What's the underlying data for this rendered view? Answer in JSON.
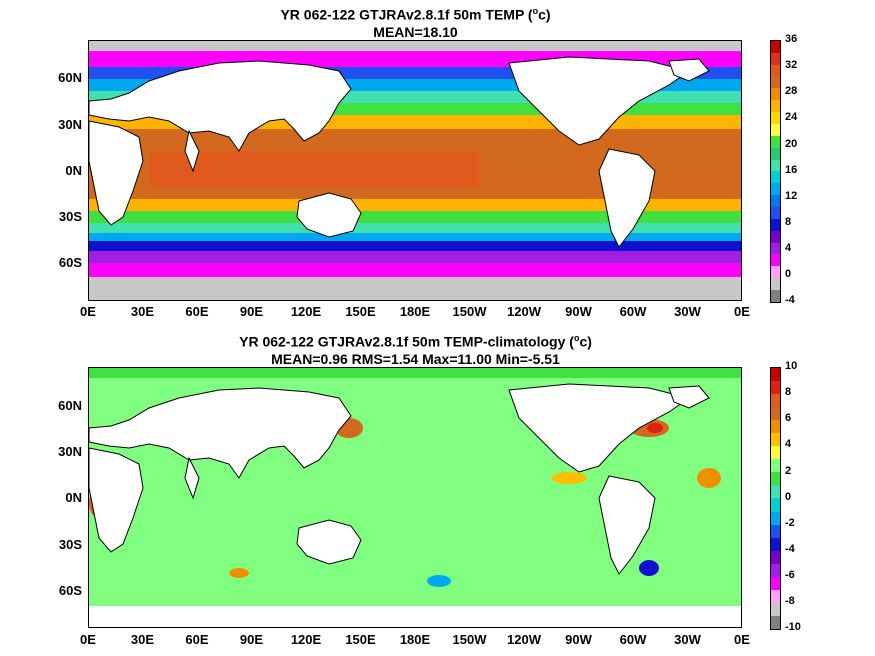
{
  "panels": [
    {
      "title_line1_pre": "YR 062-122 GTJRAv2.8.1f 50m TEMP (",
      "title_line1_sup": "o",
      "title_line1_post": "c)",
      "title_line2": "MEAN=18.10",
      "colorbar_labels": [
        "36",
        "32",
        "28",
        "24",
        "20",
        "16",
        "12",
        "8",
        "4",
        "0",
        "-4"
      ],
      "colorbar_colors": [
        "#c80000",
        "#e03020",
        "#e05a1e",
        "#d2691e",
        "#f08c00",
        "#fcb400",
        "#ffd800",
        "#ffff40",
        "#40e040",
        "#28c878",
        "#40e0b0",
        "#00d0d0",
        "#00a8f0",
        "#0078e8",
        "#2050f0",
        "#1010d0",
        "#7800c8",
        "#a020e0",
        "#ff00ff",
        "#ffa0ff",
        "#c8c8c8",
        "#808080"
      ]
    },
    {
      "title_line1_pre": "YR 062-122 GTJRAv2.8.1f 50m TEMP-climatology (",
      "title_line1_sup": "o",
      "title_line1_post": "c)",
      "title_line2": "MEAN=0.96   RMS=1.54   Max=11.00   Min=-5.51",
      "colorbar_labels": [
        "10",
        "8",
        "6",
        "4",
        "2",
        "0",
        "-2",
        "-4",
        "-6",
        "-8",
        "-10"
      ],
      "colorbar_colors": [
        "#c80000",
        "#e02010",
        "#e05a1e",
        "#d2691e",
        "#f09000",
        "#fcc000",
        "#ffff40",
        "#80ff80",
        "#40e040",
        "#40e0b0",
        "#00d0d0",
        "#00a8f0",
        "#2050f0",
        "#1010d0",
        "#7800c8",
        "#a020e0",
        "#ff00ff",
        "#ffa0ff",
        "#c8c8c8",
        "#808080"
      ]
    }
  ],
  "x_ticks": [
    "0E",
    "30E",
    "60E",
    "90E",
    "120E",
    "150E",
    "180E",
    "150W",
    "120W",
    "90W",
    "60W",
    "30W",
    "0E"
  ],
  "y_ticks": [
    "60N",
    "30N",
    "0N",
    "30S",
    "60S"
  ],
  "colors": {
    "land": "#ffffff",
    "coast": "#000000",
    "ice": "#c8c8c8"
  }
}
